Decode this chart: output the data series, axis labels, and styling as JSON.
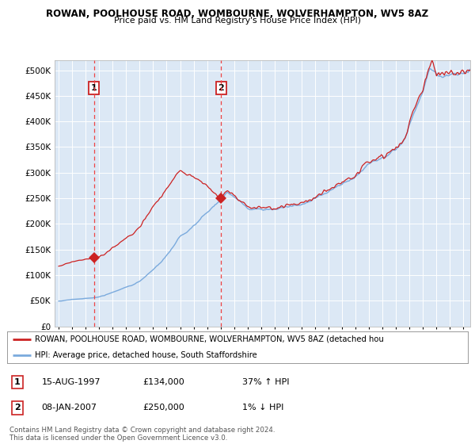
{
  "title1": "ROWAN, POOLHOUSE ROAD, WOMBOURNE, WOLVERHAMPTON, WV5 8AZ",
  "title2": "Price paid vs. HM Land Registry's House Price Index (HPI)",
  "legend_line1": "ROWAN, POOLHOUSE ROAD, WOMBOURNE, WOLVERHAMPTON, WV5 8AZ (detached hou",
  "legend_line2": "HPI: Average price, detached house, South Staffordshire",
  "annotation1_date": "15-AUG-1997",
  "annotation1_price": "£134,000",
  "annotation1_hpi": "37% ↑ HPI",
  "annotation2_date": "08-JAN-2007",
  "annotation2_price": "£250,000",
  "annotation2_hpi": "1% ↓ HPI",
  "footer": "Contains HM Land Registry data © Crown copyright and database right 2024.\nThis data is licensed under the Open Government Licence v3.0.",
  "plot_bg_color": "#dce8f5",
  "grid_color": "#ffffff",
  "hpi_color": "#7aaadd",
  "price_color": "#cc2222",
  "vline_color": "#ee4444",
  "sale1_x": 1997.62,
  "sale1_y": 134000,
  "sale2_x": 2007.03,
  "sale2_y": 250000,
  "ylim_max": 520000,
  "yticks": [
    0,
    50000,
    100000,
    150000,
    200000,
    250000,
    300000,
    350000,
    400000,
    450000,
    500000
  ],
  "xlim_min": 1994.7,
  "xlim_max": 2025.5
}
